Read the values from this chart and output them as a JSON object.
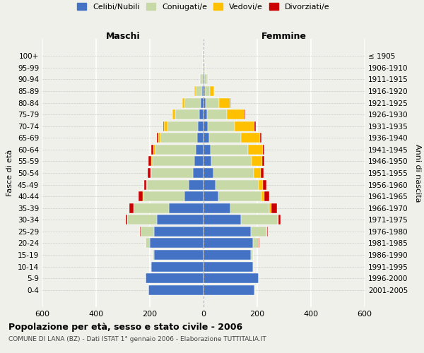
{
  "age_groups": [
    "0-4",
    "5-9",
    "10-14",
    "15-19",
    "20-24",
    "25-29",
    "30-34",
    "35-39",
    "40-44",
    "45-49",
    "50-54",
    "55-59",
    "60-64",
    "65-69",
    "70-74",
    "75-79",
    "80-84",
    "85-89",
    "90-94",
    "95-99",
    "100+"
  ],
  "birth_years": [
    "2001-2005",
    "1996-2000",
    "1991-1995",
    "1986-1990",
    "1981-1985",
    "1976-1980",
    "1971-1975",
    "1966-1970",
    "1961-1965",
    "1956-1960",
    "1951-1955",
    "1946-1950",
    "1941-1945",
    "1936-1940",
    "1931-1935",
    "1926-1930",
    "1921-1925",
    "1916-1920",
    "1911-1915",
    "1906-1910",
    "≤ 1905"
  ],
  "males": {
    "celibi": [
      205,
      215,
      195,
      185,
      200,
      185,
      175,
      130,
      70,
      55,
      40,
      35,
      30,
      25,
      20,
      15,
      10,
      5,
      3,
      1,
      1
    ],
    "coniugati": [
      1,
      1,
      2,
      5,
      15,
      50,
      110,
      130,
      155,
      155,
      155,
      155,
      150,
      135,
      115,
      90,
      60,
      25,
      8,
      2,
      1
    ],
    "vedovi": [
      0,
      0,
      0,
      0,
      0,
      0,
      0,
      1,
      1,
      2,
      3,
      5,
      6,
      8,
      12,
      10,
      8,
      3,
      1,
      0,
      0
    ],
    "divorziati": [
      0,
      0,
      0,
      0,
      1,
      2,
      5,
      15,
      15,
      8,
      10,
      10,
      8,
      6,
      4,
      2,
      1,
      0,
      0,
      0,
      0
    ]
  },
  "females": {
    "nubili": [
      190,
      205,
      185,
      175,
      185,
      175,
      140,
      100,
      55,
      45,
      38,
      30,
      25,
      20,
      15,
      12,
      8,
      4,
      2,
      1,
      1
    ],
    "coniugate": [
      1,
      1,
      3,
      8,
      20,
      60,
      135,
      145,
      160,
      160,
      150,
      148,
      140,
      120,
      100,
      75,
      50,
      20,
      10,
      3,
      1
    ],
    "vedove": [
      0,
      0,
      0,
      0,
      1,
      2,
      5,
      8,
      10,
      15,
      25,
      40,
      55,
      70,
      75,
      65,
      40,
      15,
      5,
      1,
      0
    ],
    "divorziate": [
      0,
      0,
      0,
      0,
      1,
      3,
      8,
      20,
      20,
      15,
      10,
      8,
      7,
      5,
      4,
      2,
      1,
      0,
      0,
      0,
      0
    ]
  },
  "colors": {
    "celibi": "#4472c4",
    "coniugati": "#c8d9a8",
    "vedovi": "#ffc000",
    "divorziati": "#cc0000"
  },
  "xlim": 600,
  "title": "Popolazione per età, sesso e stato civile - 2006",
  "subtitle": "COMUNE DI LANA (BZ) - Dati ISTAT 1° gennaio 2006 - Elaborazione TUTTITALIA.IT",
  "xlabel_left": "Maschi",
  "xlabel_right": "Femmine",
  "ylabel_left": "Fasce di età",
  "ylabel_right": "Anni di nascita",
  "legend_labels": [
    "Celibi/Nubili",
    "Coniugati/e",
    "Vedovi/e",
    "Divorziati/e"
  ],
  "background_color": "#f0f0eb"
}
